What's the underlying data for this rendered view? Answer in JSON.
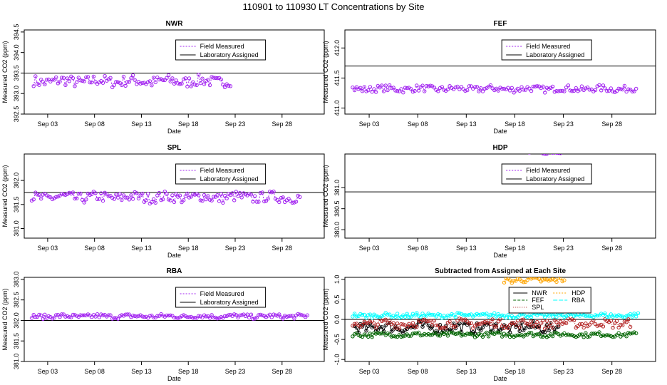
{
  "title": "110901  to  110930 LT Concentrations by Site",
  "colors": {
    "field": "#a020f0",
    "lab": "#000000",
    "NWR": "#000000",
    "FEF": "#006400",
    "SPL": "#b22222",
    "HDP": "#ffa500",
    "RBA": "#00ffff"
  },
  "legend_labels": {
    "field": "Field Measured",
    "lab": "Laboratory Assigned"
  },
  "xlabel": "Date",
  "xticks": [
    {
      "label": "Sep 03",
      "day": 3
    },
    {
      "label": "Sep 08",
      "day": 8
    },
    {
      "label": "Sep 13",
      "day": 13
    },
    {
      "label": "Sep 18",
      "day": 18
    },
    {
      "label": "Sep 23",
      "day": 23
    },
    {
      "label": "Sep 28",
      "day": 28
    }
  ],
  "chart_data": [
    {
      "type": "scatter",
      "site": "NWR",
      "title": "NWR",
      "ylabel": "Measured CO2 (ppm)",
      "xlim": [
        0.5,
        32.5
      ],
      "ylim": [
        392.5,
        394.55
      ],
      "yticks": [
        392.5,
        393.0,
        393.5,
        394.0,
        394.5
      ],
      "ytick_labels": [
        "392.5",
        "393.0",
        "393.5",
        "394.0",
        "394.5"
      ],
      "assigned": 393.5,
      "x_start": 1.5,
      "x_end": 22.6,
      "mean": 393.3,
      "spread": 0.15
    },
    {
      "type": "scatter",
      "site": "FEF",
      "title": "FEF",
      "ylabel": "Measured CO2 (ppm)",
      "xlim": [
        0.5,
        32.5
      ],
      "ylim": [
        410.9,
        412.3
      ],
      "yticks": [
        411.0,
        411.5,
        412.0
      ],
      "ytick_labels": [
        "411.0",
        "411.5",
        "412.0"
      ],
      "assigned": 411.7,
      "x_start": 1.3,
      "x_end": 30.5,
      "mean": 411.32,
      "spread": 0.06
    },
    {
      "type": "scatter",
      "site": "SPL",
      "title": "SPL",
      "ylabel": "Measured CO2 (ppm)",
      "xlim": [
        0.5,
        32.5
      ],
      "ylim": [
        380.8,
        382.55
      ],
      "yticks": [
        381.0,
        381.5,
        382.0
      ],
      "ytick_labels": [
        "381.0",
        "381.5",
        "382.0"
      ],
      "assigned": 381.75,
      "x_start": 1.3,
      "x_end": 30.0,
      "mean": 381.65,
      "spread": 0.12
    },
    {
      "type": "scatter",
      "site": "HDP",
      "title": "HDP",
      "ylabel": "Measured CO2 (ppm)",
      "xlim": [
        0.5,
        32.5
      ],
      "ylim": [
        379.8,
        381.8
      ],
      "yticks": [
        380.0,
        380.5,
        381.0
      ],
      "ytick_labels": [
        "380.0",
        "380.5",
        "381.0"
      ],
      "assigned": 380.9,
      "x_start": 16.9,
      "x_end": 23.2,
      "mean": 381.88,
      "spread": 0.08
    },
    {
      "type": "scatter",
      "site": "RBA",
      "title": "RBA",
      "ylabel": "Measured CO2 (ppm)",
      "xlim": [
        0.5,
        32.5
      ],
      "ylim": [
        381.0,
        383.05
      ],
      "yticks": [
        381.0,
        381.5,
        382.0,
        382.5,
        383.0
      ],
      "ytick_labels": [
        "381.0",
        "381.5",
        "382.0",
        "382.5",
        "383.0"
      ],
      "assigned": 382.0,
      "x_start": 1.3,
      "x_end": 30.7,
      "mean": 382.1,
      "spread": 0.06
    },
    {
      "type": "scatter",
      "site": "ALL",
      "title": "Subtracted from Assigned at Each Site",
      "ylabel": "Measured CO2 (ppm)",
      "xlim": [
        0.5,
        32.5
      ],
      "ylim": [
        -1.05,
        1.05
      ],
      "yticks": [
        -1.0,
        -0.5,
        0.0,
        0.5,
        1.0
      ],
      "ytick_labels": [
        "-1.0",
        "-0.5",
        "0.0",
        "0.5",
        "1.0"
      ],
      "assigned": 0.0,
      "legend": [
        "NWR",
        "FEF",
        "SPL",
        "HDP",
        "RBA"
      ],
      "series": [
        {
          "name": "NWR",
          "mean": -0.2,
          "spread": 0.15,
          "x_start": 1.5,
          "x_end": 22.6
        },
        {
          "name": "FEF",
          "mean": -0.38,
          "spread": 0.06,
          "x_start": 1.3,
          "x_end": 30.5
        },
        {
          "name": "SPL",
          "mean": -0.1,
          "spread": 0.12,
          "x_start": 1.3,
          "x_end": 30.0
        },
        {
          "name": "HDP",
          "mean": 0.98,
          "spread": 0.08,
          "x_start": 16.9,
          "x_end": 23.2
        },
        {
          "name": "RBA",
          "mean": 0.1,
          "spread": 0.06,
          "x_start": 1.3,
          "x_end": 30.7
        }
      ]
    }
  ]
}
